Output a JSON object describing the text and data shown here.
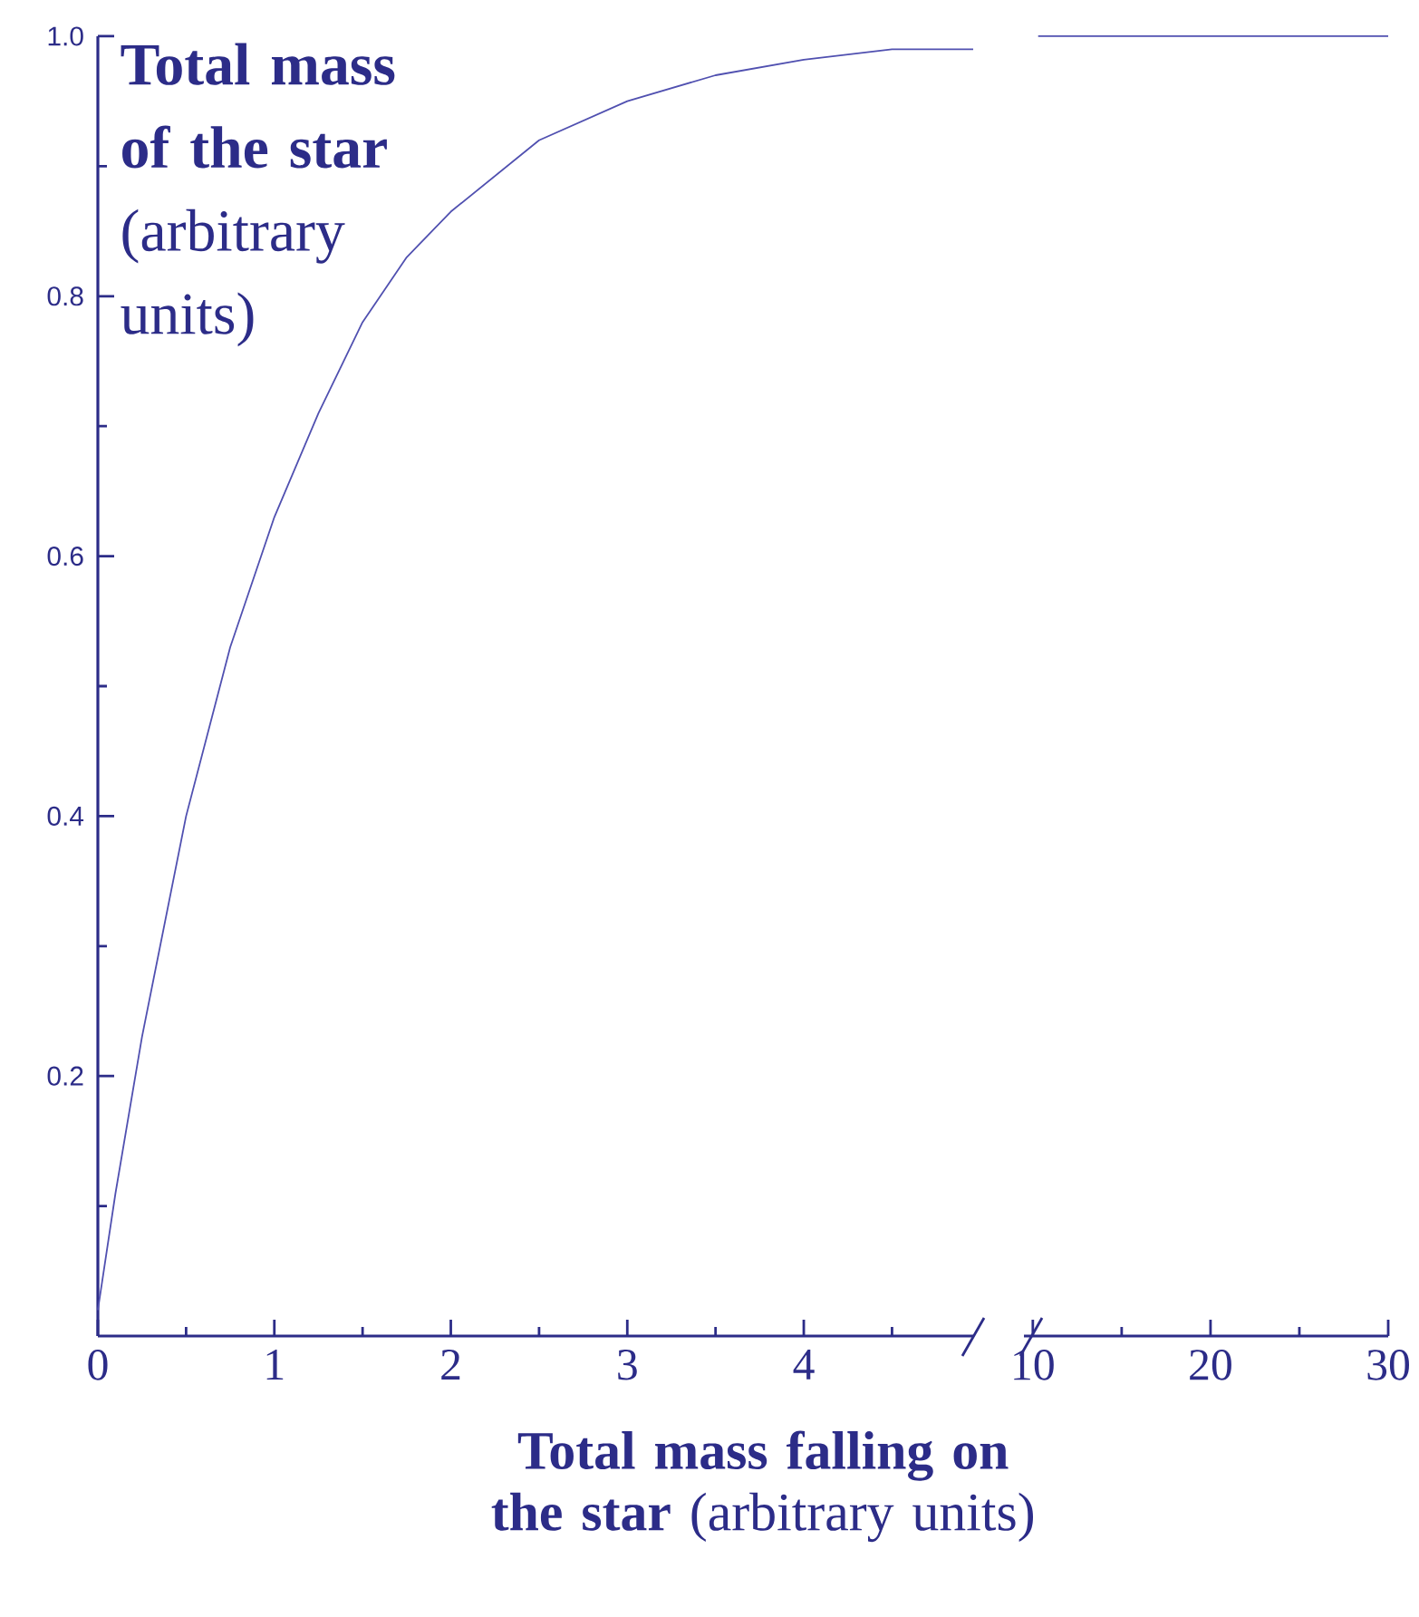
{
  "chart_data": [
    {
      "type": "line",
      "xlabel": "**Total mass falling on the star** (arbitrary units)",
      "ylabel": "**Total mass of the star** (arbitrary units)",
      "x": [
        0,
        0.1,
        0.25,
        0.5,
        0.75,
        1.0,
        1.25,
        1.5,
        1.75,
        2.0,
        2.5,
        3.0,
        3.5,
        4.0,
        4.5,
        4.96
      ],
      "series": [
        {
          "color": "#5050b0",
          "values": [
            0.02,
            0.11,
            0.23,
            0.4,
            0.53,
            0.63,
            0.71,
            0.78,
            0.83,
            0.865,
            0.92,
            0.95,
            0.97,
            0.982,
            0.99,
            0.99
          ]
        }
      ],
      "xlim": [
        0,
        4.96
      ],
      "xticks": [
        0,
        1,
        2,
        3,
        4,
        {
          "value": 0.5,
          "label": null
        },
        {
          "value": 1.5,
          "label": null
        },
        {
          "value": 2.5,
          "label": null
        },
        {
          "value": 3.5,
          "label": null
        },
        {
          "value": 4.5,
          "label": null
        }
      ],
      "ylim": [
        0,
        1.0
      ],
      "yticks": [
        {
          "value": 0.2,
          "label": "0.2"
        },
        {
          "value": 0.4,
          "label": "0.4"
        },
        {
          "value": 0.6,
          "label": "0.6"
        },
        {
          "value": 0.8,
          "label": "0.8"
        },
        {
          "value": 1.0,
          "label": "1.0"
        },
        {
          "value": 0.1,
          "label": null
        },
        {
          "value": 0.3,
          "label": null
        },
        {
          "value": 0.5,
          "label": null
        },
        {
          "value": 0.7,
          "label": null
        },
        {
          "value": 0.9,
          "label": null
        }
      ],
      "grid": false,
      "marker": "none",
      "line_style": "solid"
    },
    {
      "type": "line",
      "x": [
        10.3,
        30
      ],
      "series": [
        {
          "color": "#5050b0",
          "values": [
            1.0,
            1.0
          ]
        }
      ],
      "xlim": [
        9.5,
        30
      ],
      "xticks": [
        10,
        20,
        30,
        {
          "value": 15,
          "label": null
        },
        {
          "value": 25,
          "label": null
        }
      ],
      "ylim": [
        0,
        1.0
      ],
      "tick_labels": "x",
      "grid": false,
      "marker": "none",
      "line_style": "solid"
    }
  ]
}
